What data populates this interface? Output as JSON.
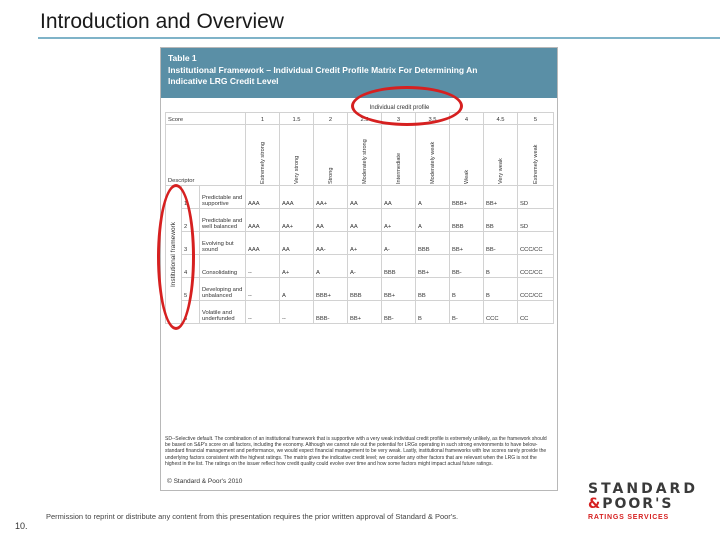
{
  "slide": {
    "title": "Introduction and Overview",
    "number": "10.",
    "permission": "Permission to reprint or distribute any content from this presentation requires the prior written approval of Standard & Poor's."
  },
  "table": {
    "title_line1": "Table 1",
    "title_line2": "Institutional Framework – Individual Credit Profile Matrix For Determining An",
    "title_line3": "Indicative LRG Credit Level",
    "profile_label": "Individual credit profile",
    "score_label": "Score",
    "descriptor_label": "Descriptor",
    "side_label": "Institutional framework",
    "scores": [
      "1",
      "1.5",
      "2",
      "2.5",
      "3",
      "3.5",
      "4",
      "4.5",
      "5"
    ],
    "descriptors": [
      "Extremely strong",
      "Very strong",
      "Strong",
      "Moderately strong",
      "Intermediate",
      "Moderately weak",
      "Weak",
      "Very weak",
      "Extremely weak"
    ],
    "rows": [
      {
        "score": "1",
        "label": "Predictable and supportive",
        "cells": [
          "AAA",
          "AAA",
          "AA+",
          "AA",
          "AA",
          "A",
          "BBB+",
          "BB+",
          "SD"
        ]
      },
      {
        "score": "2",
        "label": "Predictable and well balanced",
        "cells": [
          "AAA",
          "AA+",
          "AA",
          "AA",
          "A+",
          "A",
          "BBB",
          "BB",
          "SD"
        ]
      },
      {
        "score": "3",
        "label": "Evolving but sound",
        "cells": [
          "AAA",
          "AA",
          "AA-",
          "A+",
          "A-",
          "BBB",
          "BB+",
          "BB-",
          "CCC/CC"
        ]
      },
      {
        "score": "4",
        "label": "Consolidating",
        "cells": [
          "--",
          "A+",
          "A",
          "A-",
          "BBB",
          "BB+",
          "BB-",
          "B",
          "CCC/CC"
        ]
      },
      {
        "score": "5",
        "label": "Developing and unbalanced",
        "cells": [
          "--",
          "A",
          "BBB+",
          "BBB",
          "BB+",
          "BB",
          "B",
          "B",
          "CCC/CC"
        ]
      },
      {
        "score": "6",
        "label": "Volatile and underfunded",
        "cells": [
          "--",
          "--",
          "BBB-",
          "BB+",
          "BB-",
          "B",
          "B-",
          "CCC",
          "CC"
        ]
      }
    ],
    "footnote": "SD--Selective default. The combination of an institutional framework that is supportive with a very weak individual credit profile is extremely unlikely, as the framework should be based on S&P's score on all factors, including the economy. Although we cannot rule out the potential for LRGs operating in such strong environments to have below-standard financial management and performance, we would expect financial management to be very weak. Lastly, institutional frameworks with low scores rarely provide the underlying factors consistent with the highest ratings. The matrix gives the indicative credit level; we consider any other factors that are relevant when the LRG is not the highest in the list. The ratings on the issuer reflect how credit quality could evolve over time and how some factors might impact actual future ratings.",
    "copyright": "© Standard & Poor's 2010"
  },
  "logo": {
    "line1": "STANDARD",
    "line2_amp": "&",
    "line2_rest": "POOR'S",
    "line3": "RATINGS SERVICES",
    "accent_color": "#d62020"
  },
  "annotations": {
    "circle_color": "#d62020"
  }
}
